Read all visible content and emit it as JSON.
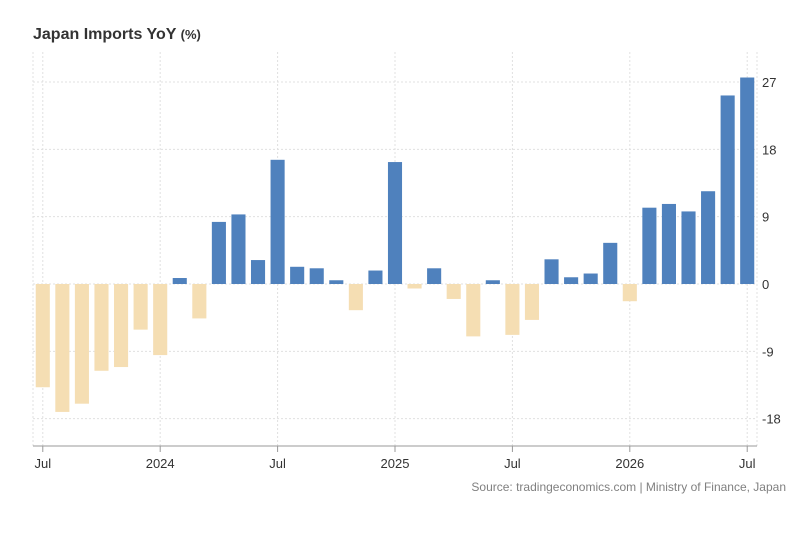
{
  "chart_data": {
    "type": "bar",
    "title": "Japan Imports YoY",
    "unit": "(%)",
    "source": "Source: tradingeconomics.com | Ministry of Finance, Japan",
    "categories": [
      "2023-07",
      "2023-08",
      "2023-09",
      "2023-10",
      "2023-11",
      "2023-12",
      "2024-01",
      "2024-02",
      "2024-03",
      "2024-04",
      "2024-05",
      "2024-06",
      "2024-07",
      "2024-08",
      "2024-09",
      "2024-10",
      "2024-11",
      "2024-12",
      "2025-01",
      "2025-02",
      "2025-03",
      "2025-04",
      "2025-05",
      "2025-06",
      "2025-07",
      "2025-08",
      "2025-09",
      "2025-10",
      "2025-11",
      "2025-12",
      "2026-01",
      "2026-02",
      "2026-03",
      "2026-04",
      "2026-05",
      "2026-06",
      "2026-07"
    ],
    "values": [
      -13.8,
      -17.1,
      -16.0,
      -11.6,
      -11.1,
      -6.1,
      -9.5,
      0.8,
      -4.6,
      8.3,
      9.3,
      3.2,
      16.6,
      2.3,
      2.1,
      0.5,
      -3.5,
      1.8,
      16.3,
      -0.6,
      2.1,
      -2.0,
      -7.0,
      0.5,
      -6.8,
      -4.8,
      3.3,
      0.9,
      1.4,
      5.5,
      -2.3,
      10.2,
      10.7,
      9.7,
      12.4,
      25.2,
      27.6
    ],
    "negative_color": "#f5deb3",
    "positive_color": "#4f81bd",
    "x_tick_labels": [
      {
        "at": "2023-07",
        "label": "Jul"
      },
      {
        "at": "2024-01",
        "label": "2024"
      },
      {
        "at": "2024-07",
        "label": "Jul"
      },
      {
        "at": "2025-01",
        "label": "2025"
      },
      {
        "at": "2025-07",
        "label": "Jul"
      },
      {
        "at": "2026-01",
        "label": "2026"
      },
      {
        "at": "2026-07",
        "label": "Jul"
      }
    ],
    "y_ticks": [
      27,
      18,
      9,
      0,
      -9,
      -18
    ],
    "ylim": [
      -22,
      31
    ],
    "y_axis_position": "right",
    "grid": true
  }
}
